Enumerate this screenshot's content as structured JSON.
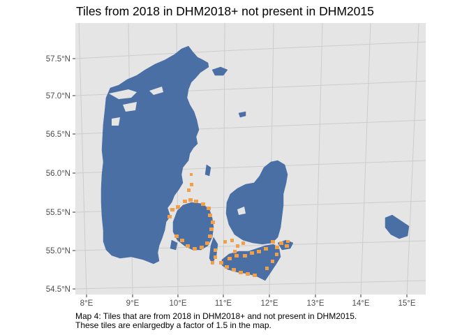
{
  "title": "Tiles from 2018 in DHM2018+ not present in DHM2015",
  "caption": {
    "line1": "Map 4: Tiles that are from 2018 in DHM2018+ and not present in DHM2015.",
    "line2": "These tiles are enlargedby a factor of 1.5 in the map."
  },
  "axes": {
    "y_ticks": [
      "57.5°N",
      "57.0°N",
      "56.5°N",
      "56.0°N",
      "55.5°N",
      "55.0°N",
      "54.5°N"
    ],
    "x_ticks": [
      "8°E",
      "9°E",
      "10°E",
      "11°E",
      "12°E",
      "13°E",
      "14°E",
      "15°E"
    ]
  },
  "colors": {
    "panel": "#e5e5e5",
    "grid": "#c7c7c7",
    "land": "#4a6fa5",
    "tiles": "#f0a04b"
  }
}
